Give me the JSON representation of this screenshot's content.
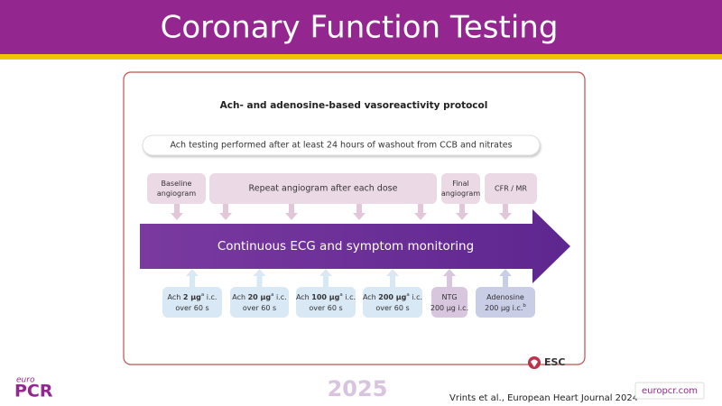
{
  "header": {
    "title": "Coronary Function Testing"
  },
  "protocol": {
    "title": "Ach- and adenosine-based vasoreactivity protocol",
    "note": "Ach testing performed after at least 24 hours of washout from CCB and nitrates",
    "top_boxes": [
      {
        "lines": [
          "Baseline",
          "angiogram"
        ]
      },
      {
        "lines": [
          "Repeat angiogram after each dose"
        ]
      },
      {
        "lines": [
          "Final",
          "angiogram"
        ]
      },
      {
        "lines": [
          "CFR / MR"
        ]
      }
    ],
    "arrow_label": "Continuous ECG and symptom monitoring",
    "bottom_boxes": [
      {
        "line1": [
          "Ach ",
          "2 μg",
          "a",
          " i.c."
        ],
        "line2": "over 60 s"
      },
      {
        "line1": [
          "Ach ",
          "20 μg",
          "a",
          " i.c."
        ],
        "line2": "over 60 s"
      },
      {
        "line1": [
          "Ach ",
          "100 μg",
          "a",
          " i.c."
        ],
        "line2": "over 60 s"
      },
      {
        "line1": [
          "Ach ",
          "200 μg",
          "a",
          " i.c."
        ],
        "line2": "over 60 s"
      },
      {
        "line1": [
          "NTG"
        ],
        "line2": "200 μg i.c."
      },
      {
        "line1": [
          "Adenosine"
        ],
        "line2": "200 μg i.c.",
        "sup": "b"
      }
    ],
    "logo": "ESC"
  },
  "footer": {
    "logo_top": "euro",
    "logo_main": "PCR",
    "year": "2025",
    "citation": "Vrints et al., European Heart Journal 2024",
    "site": "europcr.com"
  }
}
